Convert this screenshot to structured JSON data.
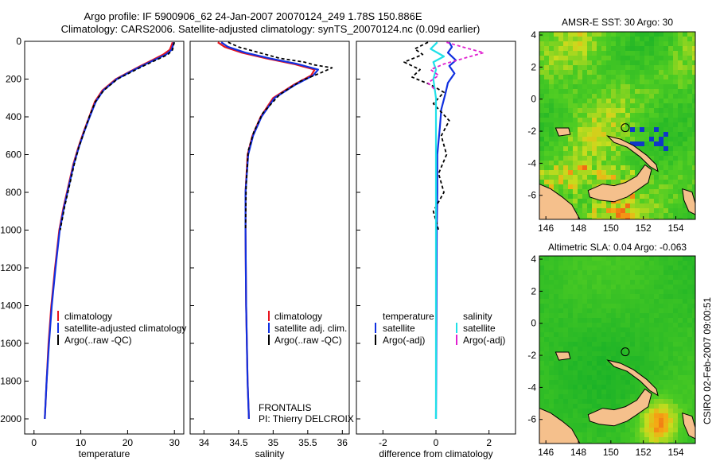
{
  "header": {
    "line1": "Argo profile: IF 5900906_62 24-Jan-2007 20070124_249 1.78S 150.886E",
    "line2": "Climatology: CARS2006. Satellite-adjusted climatology: synTS_20070124.nc (0.09d earlier)"
  },
  "side_stamp": "CSIRO 02-Feb-2007 09:00:51",
  "colors": {
    "climatology": "#e8141e",
    "satellite": "#1030e0",
    "argo": "#000000",
    "salinity_sat": "#20e0e8",
    "salinity_argo": "#e020d0",
    "land": "#f5c08c"
  },
  "chart_data": [
    {
      "type": "line",
      "id": "temperature",
      "xlabel": "temperature",
      "ylabel": "",
      "xlim": [
        -2,
        32
      ],
      "ylim": [
        2080,
        0
      ],
      "y_inverted": true,
      "xticks": [
        0,
        10,
        20,
        30
      ],
      "yticks": [
        0,
        200,
        400,
        600,
        800,
        1000,
        1200,
        1400,
        1600,
        1800,
        2000
      ],
      "legend": {
        "placement": "lower-right",
        "entries": [
          "climatology",
          "satellite-adjusted climatology",
          "Argo(..raw -QC)"
        ]
      },
      "series": [
        {
          "name": "climatology",
          "color": "#e8141e",
          "dash": "",
          "points": [
            [
              29.6,
              5
            ],
            [
              29.4,
              20
            ],
            [
              29.0,
              45
            ],
            [
              27.6,
              70
            ],
            [
              25.2,
              100
            ],
            [
              22.8,
              130
            ],
            [
              20.5,
              160
            ],
            [
              17.5,
              200
            ],
            [
              14.6,
              260
            ],
            [
              13.0,
              320
            ],
            [
              11.8,
              400
            ],
            [
              10.6,
              480
            ],
            [
              9.5,
              560
            ],
            [
              8.4,
              650
            ],
            [
              7.4,
              760
            ],
            [
              6.3,
              880
            ],
            [
              5.4,
              1000
            ],
            [
              4.5,
              1200
            ],
            [
              3.7,
              1400
            ],
            [
              3.1,
              1600
            ],
            [
              2.7,
              1800
            ],
            [
              2.3,
              2000
            ]
          ]
        },
        {
          "name": "satellite-adjusted climatology",
          "color": "#1030e0",
          "dash": "",
          "points": [
            [
              29.9,
              5
            ],
            [
              29.7,
              20
            ],
            [
              29.4,
              45
            ],
            [
              28.2,
              70
            ],
            [
              25.6,
              100
            ],
            [
              23.1,
              130
            ],
            [
              20.7,
              160
            ],
            [
              17.7,
              200
            ],
            [
              14.8,
              260
            ],
            [
              13.2,
              320
            ],
            [
              11.9,
              400
            ],
            [
              10.7,
              480
            ],
            [
              9.6,
              560
            ],
            [
              8.5,
              650
            ],
            [
              7.5,
              760
            ],
            [
              6.4,
              880
            ],
            [
              5.5,
              1000
            ],
            [
              4.6,
              1200
            ],
            [
              3.8,
              1400
            ],
            [
              3.2,
              1600
            ],
            [
              2.7,
              1800
            ],
            [
              2.3,
              2000
            ]
          ]
        },
        {
          "name": "Argo(..raw -QC)",
          "color": "#000000",
          "dash": "4,3",
          "points": [
            [
              30.0,
              5
            ],
            [
              29.8,
              20
            ],
            [
              29.6,
              45
            ],
            [
              28.6,
              70
            ],
            [
              26.0,
              100
            ],
            [
              23.4,
              130
            ],
            [
              21.0,
              160
            ],
            [
              17.8,
              200
            ],
            [
              14.9,
              260
            ],
            [
              13.1,
              320
            ],
            [
              11.8,
              400
            ],
            [
              10.7,
              480
            ],
            [
              9.6,
              560
            ],
            [
              8.6,
              650
            ],
            [
              7.6,
              760
            ],
            [
              6.5,
              880
            ],
            [
              5.6,
              1000
            ]
          ]
        }
      ]
    },
    {
      "type": "line",
      "id": "salinity",
      "xlabel": "salinity",
      "ylabel": "",
      "xlim": [
        33.8,
        36.1
      ],
      "ylim": [
        2080,
        0
      ],
      "y_inverted": true,
      "xticks": [
        34,
        34.5,
        35,
        35.5,
        36
      ],
      "legend": {
        "placement": "lower-right",
        "entries": [
          "climatology",
          "satellite adj. clim.",
          "Argo(..raw -QC)"
        ]
      },
      "annotation": [
        "FRONTALIS",
        "PI: Thierry DELCROIX"
      ],
      "series": [
        {
          "name": "climatology",
          "color": "#e8141e",
          "dash": "",
          "points": [
            [
              34.2,
              5
            ],
            [
              34.3,
              30
            ],
            [
              34.55,
              60
            ],
            [
              34.9,
              90
            ],
            [
              35.3,
              120
            ],
            [
              35.6,
              150
            ],
            [
              35.55,
              180
            ],
            [
              35.3,
              230
            ],
            [
              35.0,
              300
            ],
            [
              34.82,
              400
            ],
            [
              34.7,
              500
            ],
            [
              34.63,
              600
            ],
            [
              34.6,
              800
            ],
            [
              34.6,
              1000
            ],
            [
              34.61,
              1400
            ],
            [
              34.63,
              1800
            ],
            [
              34.65,
              2000
            ]
          ]
        },
        {
          "name": "satellite adj. clim.",
          "color": "#1030e0",
          "dash": "",
          "points": [
            [
              34.25,
              5
            ],
            [
              34.35,
              30
            ],
            [
              34.6,
              60
            ],
            [
              34.95,
              90
            ],
            [
              35.35,
              120
            ],
            [
              35.65,
              150
            ],
            [
              35.58,
              180
            ],
            [
              35.32,
              230
            ],
            [
              35.02,
              300
            ],
            [
              34.83,
              400
            ],
            [
              34.71,
              500
            ],
            [
              34.64,
              600
            ],
            [
              34.6,
              800
            ],
            [
              34.6,
              1000
            ],
            [
              34.61,
              1400
            ],
            [
              34.63,
              1800
            ],
            [
              34.65,
              2000
            ]
          ]
        },
        {
          "name": "Argo(..raw -QC)",
          "color": "#000000",
          "dash": "4,3",
          "points": [
            [
              34.35,
              5
            ],
            [
              34.5,
              30
            ],
            [
              34.8,
              60
            ],
            [
              35.1,
              90
            ],
            [
              35.45,
              110
            ],
            [
              35.6,
              125
            ],
            [
              35.85,
              140
            ],
            [
              35.7,
              165
            ],
            [
              35.4,
              210
            ],
            [
              35.1,
              280
            ],
            [
              34.85,
              380
            ],
            [
              34.72,
              480
            ],
            [
              34.64,
              580
            ],
            [
              34.61,
              760
            ],
            [
              34.6,
              1000
            ]
          ]
        }
      ]
    },
    {
      "type": "line",
      "id": "difference",
      "xlabel": "difference from climatology",
      "ylabel": "",
      "xlim": [
        -3,
        3
      ],
      "ylim": [
        2080,
        0
      ],
      "y_inverted": true,
      "xticks": [
        -2,
        0,
        2
      ],
      "legend": {
        "placement": "lower-right",
        "left_header": "temperature",
        "right_header": "salinity",
        "left_entries": [
          "satellite",
          "Argo(-adj)"
        ],
        "right_entries": [
          "satellite",
          "Argo(-adj)"
        ]
      },
      "series": [
        {
          "name": "temperature satellite",
          "color": "#1030e0",
          "dash": "",
          "points": [
            [
              0.5,
              5
            ],
            [
              0.6,
              30
            ],
            [
              0.45,
              60
            ],
            [
              0.75,
              100
            ],
            [
              0.5,
              130
            ],
            [
              0.7,
              170
            ],
            [
              0.45,
              220
            ],
            [
              0.35,
              280
            ],
            [
              0.2,
              360
            ],
            [
              0.15,
              450
            ],
            [
              0.05,
              600
            ],
            [
              0.05,
              800
            ],
            [
              0.03,
              1000
            ],
            [
              0.02,
              1400
            ],
            [
              0.01,
              1800
            ],
            [
              0.0,
              2000
            ]
          ]
        },
        {
          "name": "temperature Argo(-adj)",
          "color": "#000000",
          "dash": "4,3",
          "points": [
            [
              -0.3,
              5
            ],
            [
              -0.8,
              40
            ],
            [
              -0.5,
              70
            ],
            [
              -1.2,
              110
            ],
            [
              -0.6,
              150
            ],
            [
              -0.9,
              190
            ],
            [
              -0.2,
              230
            ],
            [
              0.3,
              270
            ],
            [
              -0.1,
              330
            ],
            [
              0.5,
              420
            ],
            [
              0.2,
              500
            ],
            [
              0.4,
              600
            ],
            [
              0.1,
              700
            ],
            [
              0.3,
              800
            ],
            [
              -0.1,
              900
            ],
            [
              0.1,
              1000
            ]
          ]
        },
        {
          "name": "salinity satellite",
          "color": "#20e0e8",
          "dash": "",
          "points": [
            [
              0.05,
              5
            ],
            [
              -0.2,
              40
            ],
            [
              0.3,
              80
            ],
            [
              -0.1,
              110
            ],
            [
              0.0,
              150
            ],
            [
              -0.1,
              200
            ],
            [
              0.0,
              300
            ],
            [
              0.0,
              500
            ],
            [
              0.0,
              800
            ],
            [
              0.0,
              1200
            ],
            [
              0.0,
              1600
            ],
            [
              0.0,
              2000
            ]
          ]
        },
        {
          "name": "salinity Argo(-adj)",
          "color": "#e020d0",
          "dash": "4,3",
          "points": [
            [
              0.4,
              5
            ],
            [
              1.0,
              30
            ],
            [
              1.8,
              60
            ],
            [
              1.3,
              80
            ],
            [
              0.8,
              100
            ],
            [
              0.3,
              120
            ],
            [
              -0.2,
              150
            ],
            [
              0.1,
              180
            ],
            [
              -0.3,
              220
            ],
            [
              0.0,
              260
            ]
          ]
        }
      ]
    },
    {
      "type": "heatmap",
      "id": "sst_map",
      "title": "AMSR-E SST: 30 Argo: 30",
      "xlim": [
        145.6,
        155.2
      ],
      "ylim": [
        -7.5,
        4.2
      ],
      "xticks": [
        146,
        148,
        150,
        152,
        154
      ],
      "yticks": [
        4,
        2,
        0,
        -2,
        -4,
        -6
      ],
      "profile_location": [
        150.886,
        -1.78
      ]
    },
    {
      "type": "heatmap",
      "id": "sla_map",
      "title": "Altimetric SLA: 0.04 Argo: -0.063",
      "xlim": [
        145.6,
        155.2
      ],
      "ylim": [
        -7.5,
        4.2
      ],
      "xticks": [
        146,
        148,
        150,
        152,
        154
      ],
      "yticks": [
        4,
        2,
        0,
        -2,
        -4,
        -6
      ],
      "profile_location": [
        150.886,
        -1.78
      ]
    }
  ]
}
